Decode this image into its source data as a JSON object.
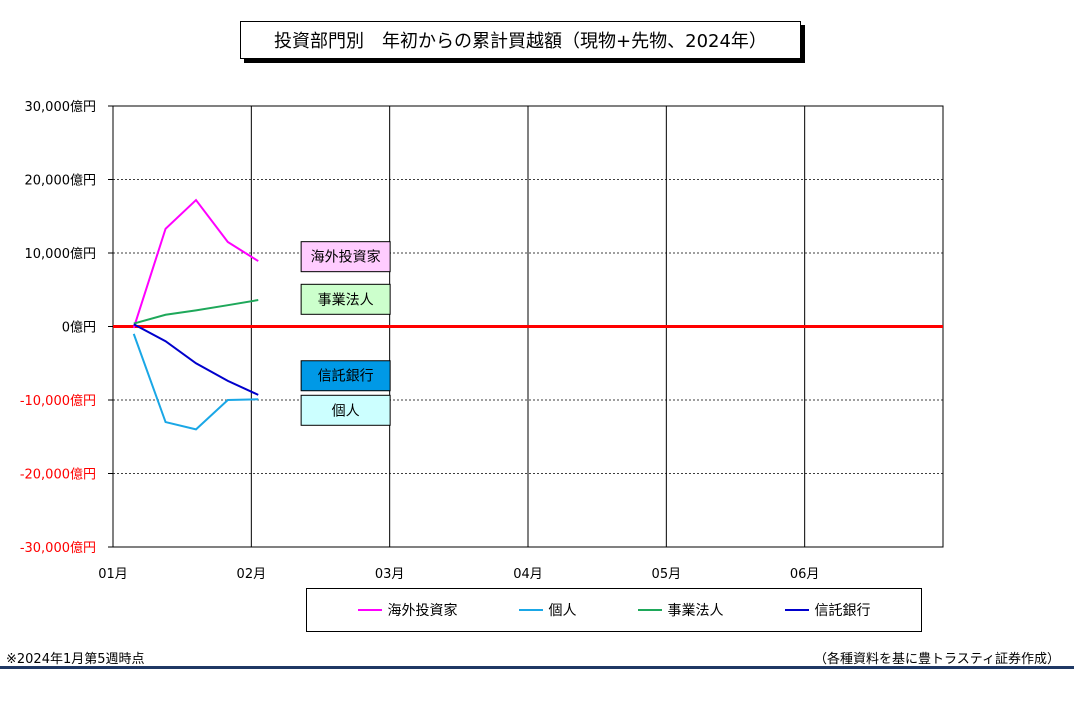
{
  "title": "投資部門別　年初からの累計買越額（現物+先物、2024年）",
  "chart_data": {
    "type": "line",
    "unit": "億円",
    "ylim": [
      -30000,
      30000
    ],
    "yticks": [
      30000,
      20000,
      10000,
      0,
      -10000,
      -20000,
      -30000
    ],
    "ytick_labels": [
      "30,000億円",
      "20,000億円",
      "10,000億円",
      "0億円",
      "-10,000億円",
      "-20,000億円",
      "-30,000億円"
    ],
    "xtick_labels": [
      "01月",
      "02月",
      "03月",
      "04月",
      "05月",
      "06月"
    ],
    "x_points": [
      0.15,
      0.38,
      0.6,
      0.83,
      1.05
    ],
    "grid": true,
    "zero_line_color": "#ff0000",
    "series": [
      {
        "name": "海外投資家",
        "color": "#ff00ff",
        "label_bg": "#ffccff",
        "values": [
          -200,
          13300,
          17200,
          11500,
          8900
        ]
      },
      {
        "name": "個人",
        "color": "#1aa7e6",
        "label_bg": "#ccffff",
        "values": [
          -1000,
          -13000,
          -14000,
          -10000,
          -9900
        ]
      },
      {
        "name": "事業法人",
        "color": "#1ea85a",
        "label_bg": "#ccffcc",
        "values": [
          400,
          1600,
          2200,
          2900,
          3600
        ]
      },
      {
        "name": "信託銀行",
        "color": "#0000cc",
        "label_bg": "#0099e6",
        "values": [
          300,
          -2000,
          -5000,
          -7400,
          -9300
        ]
      }
    ],
    "series_label_order": [
      "海外投資家",
      "事業法人",
      "信託銀行",
      "個人"
    ]
  },
  "legend": [
    "海外投資家",
    "個人",
    "事業法人",
    "信託銀行"
  ],
  "note_left": "※2024年1月第5週時点",
  "note_right": "（各種資料を基に豊トラスティ証券作成）"
}
